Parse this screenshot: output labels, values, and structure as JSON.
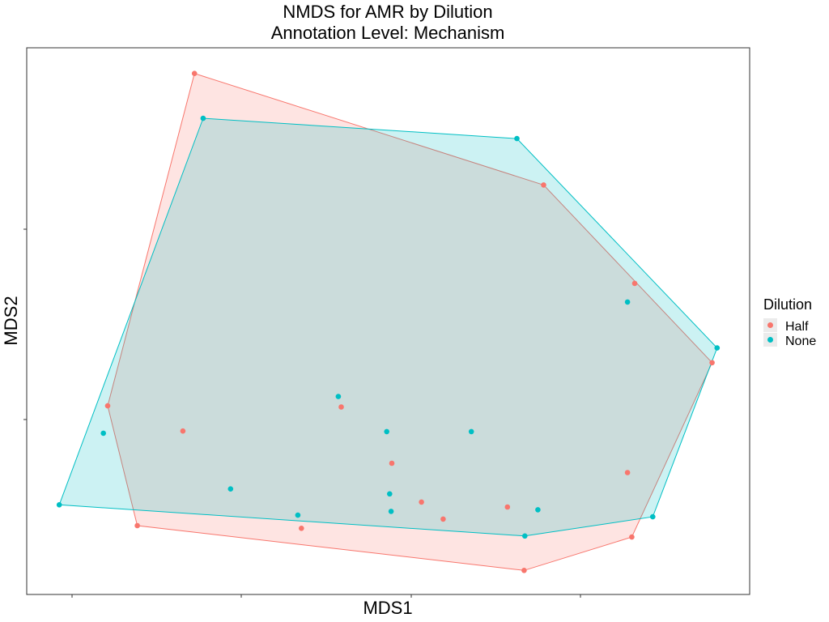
{
  "chart_data": {
    "type": "scatter",
    "title": "NMDS for AMR by Dilution",
    "subtitle": "Annotation Level: Mechanism",
    "xlabel": "MDS1",
    "ylabel": "MDS2",
    "x_ticks_labeled": false,
    "y_ticks_labeled": false,
    "xlim": [
      0,
      1
    ],
    "ylim": [
      0,
      1
    ],
    "grid": false,
    "hull_polygons": true,
    "legend": {
      "title": "Dilution",
      "position": "right",
      "entries": [
        "Half",
        "None"
      ]
    },
    "series": [
      {
        "name": "Half",
        "color": "#F8766D",
        "points": [
          {
            "x": 0.232,
            "y": 0.953
          },
          {
            "x": 0.715,
            "y": 0.749
          },
          {
            "x": 0.841,
            "y": 0.569
          },
          {
            "x": 0.948,
            "y": 0.424
          },
          {
            "x": 0.112,
            "y": 0.345
          },
          {
            "x": 0.216,
            "y": 0.299
          },
          {
            "x": 0.435,
            "y": 0.343
          },
          {
            "x": 0.505,
            "y": 0.24
          },
          {
            "x": 0.831,
            "y": 0.223
          },
          {
            "x": 0.546,
            "y": 0.169
          },
          {
            "x": 0.665,
            "y": 0.16
          },
          {
            "x": 0.576,
            "y": 0.138
          },
          {
            "x": 0.153,
            "y": 0.126
          },
          {
            "x": 0.38,
            "y": 0.121
          },
          {
            "x": 0.837,
            "y": 0.105
          },
          {
            "x": 0.688,
            "y": 0.044
          }
        ],
        "hull": [
          0,
          1,
          3,
          14,
          15,
          12,
          4
        ]
      },
      {
        "name": "None",
        "color": "#00BFC4",
        "points": [
          {
            "x": 0.244,
            "y": 0.871
          },
          {
            "x": 0.678,
            "y": 0.834
          },
          {
            "x": 0.831,
            "y": 0.535
          },
          {
            "x": 0.955,
            "y": 0.451
          },
          {
            "x": 0.431,
            "y": 0.362
          },
          {
            "x": 0.498,
            "y": 0.298
          },
          {
            "x": 0.615,
            "y": 0.298
          },
          {
            "x": 0.106,
            "y": 0.295
          },
          {
            "x": 0.282,
            "y": 0.193
          },
          {
            "x": 0.502,
            "y": 0.184
          },
          {
            "x": 0.504,
            "y": 0.152
          },
          {
            "x": 0.707,
            "y": 0.155
          },
          {
            "x": 0.375,
            "y": 0.145
          },
          {
            "x": 0.045,
            "y": 0.164
          },
          {
            "x": 0.866,
            "y": 0.142
          },
          {
            "x": 0.689,
            "y": 0.107
          }
        ],
        "hull": [
          0,
          1,
          3,
          14,
          15,
          13
        ]
      }
    ]
  }
}
